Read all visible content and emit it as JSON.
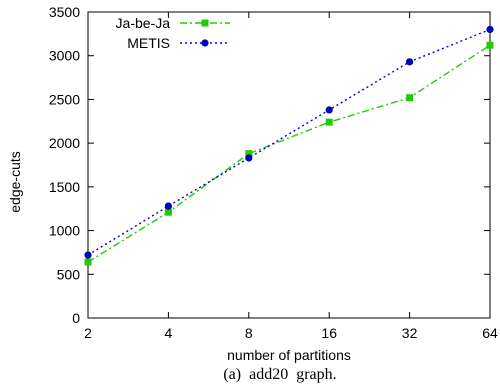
{
  "chart_data": {
    "type": "line",
    "x": [
      2,
      4,
      8,
      16,
      32,
      64
    ],
    "x_tick_labels": [
      "2",
      "4",
      "8",
      "16",
      "32",
      "64"
    ],
    "x_scale": "log2",
    "xlabel": "number of partitions",
    "ylabel": "edge-cuts",
    "ylim": [
      0,
      3500
    ],
    "y_ticks": [
      0,
      500,
      1000,
      1500,
      2000,
      2500,
      3000,
      3500
    ],
    "grid": false,
    "legend_position": "top-left",
    "series": [
      {
        "name": "Ja-be-Ja",
        "values": [
          640,
          1210,
          1880,
          2240,
          2520,
          3120
        ],
        "color": "#22cc00",
        "marker": "square",
        "line_style": "dash-dot"
      },
      {
        "name": "METIS",
        "values": [
          720,
          1280,
          1830,
          2380,
          2930,
          3300
        ],
        "color": "#0000dd",
        "marker": "circle",
        "line_style": "dotted"
      }
    ]
  },
  "caption": "(a)  add20  graph."
}
